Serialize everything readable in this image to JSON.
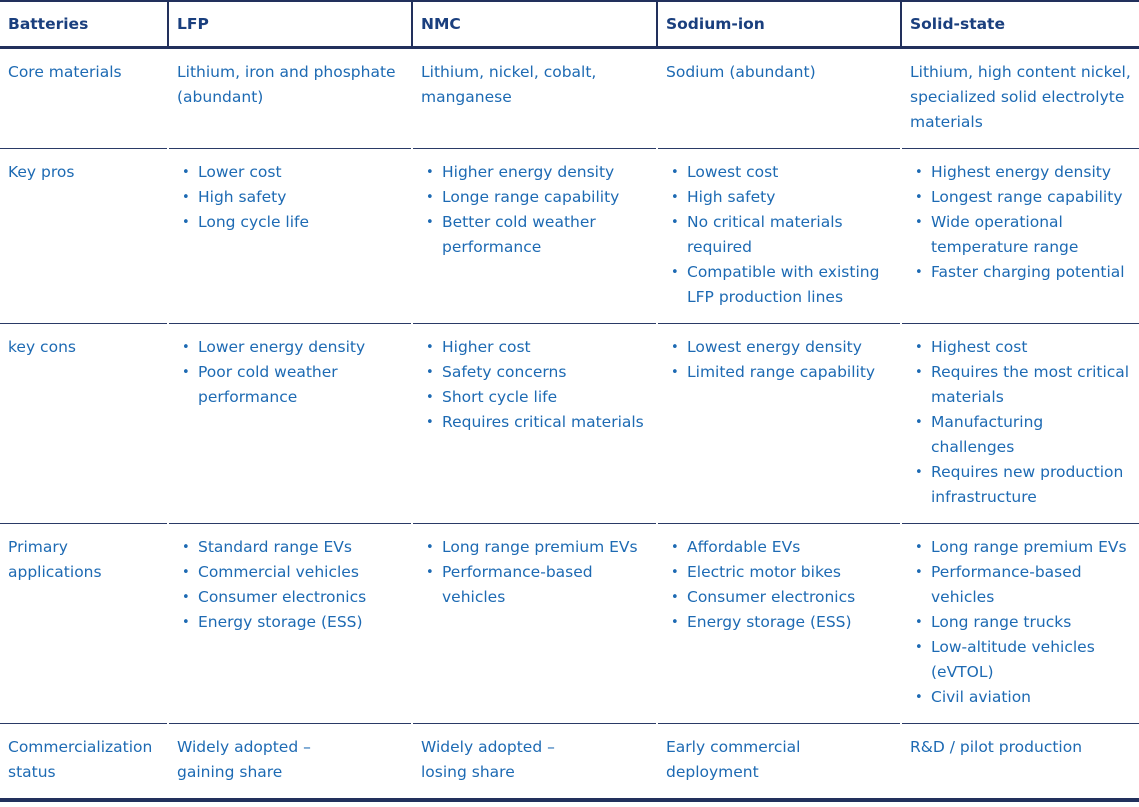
{
  "colors": {
    "header_text": "#1a3f7e",
    "body_text": "#1d6ab3",
    "line_dark": "#22305c",
    "background": "#ffffff"
  },
  "table": {
    "header": {
      "cells": [
        "Batteries",
        "LFP",
        "NMC",
        "Sodium-ion",
        "Solid-state"
      ]
    },
    "rows": [
      {
        "label": "Core materials",
        "cells": [
          {
            "text": "Lithium, iron and phosphate (abundant)"
          },
          {
            "text": "Lithium, nickel, cobalt, manganese"
          },
          {
            "text": "Sodium (abundant)"
          },
          {
            "text": "Lithium, high content nickel, specialized solid electrolyte materials"
          }
        ]
      },
      {
        "label": "Key pros",
        "cells": [
          {
            "bullets": [
              "Lower cost",
              "High safety",
              "Long cycle life"
            ]
          },
          {
            "bullets": [
              "Higher energy density",
              "Longe range capability",
              "Better cold weather performance"
            ]
          },
          {
            "bullets": [
              "Lowest cost",
              "High safety",
              "No critical materials required",
              "Compatible with existing LFP production lines"
            ]
          },
          {
            "bullets": [
              "Highest energy density",
              "Longest range capability",
              "Wide operational temperature range",
              "Faster charging potential"
            ]
          }
        ]
      },
      {
        "label": "key cons",
        "cells": [
          {
            "bullets": [
              "Lower energy density",
              "Poor cold weather performance"
            ]
          },
          {
            "bullets": [
              "Higher cost",
              "Safety concerns",
              "Short cycle life",
              "Requires critical materials"
            ]
          },
          {
            "bullets": [
              "Lowest energy density",
              "Limited range capability"
            ]
          },
          {
            "bullets": [
              "Highest cost",
              "Requires the most critical materials",
              "Manufacturing challenges",
              "Requires new production infrastructure"
            ]
          }
        ]
      },
      {
        "label": "Primary\napplications",
        "cells": [
          {
            "bullets": [
              "Standard range EVs",
              "Commercial vehicles",
              "Consumer electronics",
              "Energy storage (ESS)"
            ]
          },
          {
            "bullets": [
              "Long range premium EVs",
              "Performance-based vehicles"
            ]
          },
          {
            "bullets": [
              "Affordable EVs",
              "Electric motor bikes",
              "Consumer electronics",
              "Energy storage (ESS)"
            ]
          },
          {
            "bullets": [
              "Long range premium EVs",
              "Performance-based vehicles",
              "Long range trucks",
              "Low-altitude vehicles (eVTOL)",
              "Civil aviation"
            ]
          }
        ]
      },
      {
        "label": "Commercialization\nstatus",
        "cells": [
          {
            "text": "Widely adopted –\ngaining share"
          },
          {
            "text": "Widely adopted –\nlosing share"
          },
          {
            "text": "Early commercial\ndeployment"
          },
          {
            "text": "R&D / pilot production"
          }
        ]
      }
    ]
  }
}
